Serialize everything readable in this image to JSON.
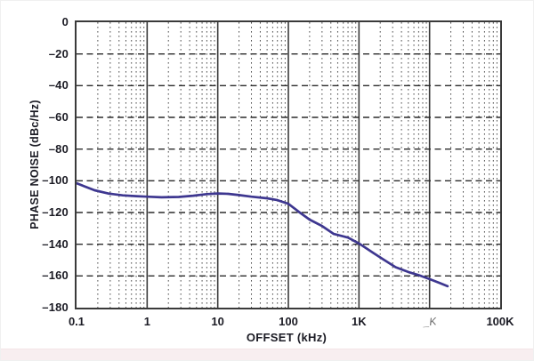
{
  "page": {
    "background": "#ffffff",
    "footer_strip_color": "#f8eef0"
  },
  "chart_data": {
    "type": "line",
    "title": "",
    "xlabel": "OFFSET (kHz)",
    "ylabel": "PHASE NOISE (dBc/Hz)",
    "x_scale": "log",
    "xlim": [
      0.1,
      100000
    ],
    "ylim": [
      -180,
      0
    ],
    "grid": {
      "minor_vertical_style": "dotted",
      "major_vertical_style": "solid",
      "horizontal_style": "dashed",
      "minor_color": "#515151",
      "major_color": "#3a3a3a",
      "horizontal_color": "#2b2b2b"
    },
    "x_ticks": [
      {
        "value": 0.1,
        "label": "0.1",
        "glitched": false
      },
      {
        "value": 1,
        "label": "1",
        "glitched": false
      },
      {
        "value": 10,
        "label": "10",
        "glitched": false
      },
      {
        "value": 100,
        "label": "100",
        "glitched": false
      },
      {
        "value": 1000,
        "label": "1K",
        "glitched": false
      },
      {
        "value": 10000,
        "label": "_K",
        "glitched": true
      },
      {
        "value": 100000,
        "label": "100K",
        "glitched": false
      }
    ],
    "y_ticks": [
      {
        "value": 0,
        "label": "0"
      },
      {
        "value": -20,
        "label": "–20"
      },
      {
        "value": -40,
        "label": "–40"
      },
      {
        "value": -60,
        "label": "–60"
      },
      {
        "value": -80,
        "label": "–80"
      },
      {
        "value": -100,
        "label": "–100"
      },
      {
        "value": -120,
        "label": "–120"
      },
      {
        "value": -140,
        "label": "–140"
      },
      {
        "value": -160,
        "label": "–160"
      },
      {
        "value": -180,
        "label": "–180"
      }
    ],
    "series": [
      {
        "name": "phase noise",
        "color": "#3e3790",
        "points": [
          [
            0.1,
            -101.5
          ],
          [
            0.13,
            -103.5
          ],
          [
            0.18,
            -106
          ],
          [
            0.28,
            -108
          ],
          [
            0.45,
            -109.2
          ],
          [
            0.7,
            -109.7
          ],
          [
            1,
            -110
          ],
          [
            1.6,
            -110.4
          ],
          [
            2.8,
            -110.2
          ],
          [
            4.5,
            -109.4
          ],
          [
            7,
            -108.4
          ],
          [
            10,
            -108
          ],
          [
            14,
            -108.2
          ],
          [
            20,
            -109
          ],
          [
            30,
            -110
          ],
          [
            50,
            -111
          ],
          [
            70,
            -112.2
          ],
          [
            100,
            -114.5
          ],
          [
            140,
            -119.5
          ],
          [
            200,
            -124.5
          ],
          [
            300,
            -128.5
          ],
          [
            440,
            -133.5
          ],
          [
            700,
            -135.8
          ],
          [
            1000,
            -139.5
          ],
          [
            1600,
            -145.5
          ],
          [
            2200,
            -149.5
          ],
          [
            3300,
            -154.5
          ],
          [
            5000,
            -157.5
          ],
          [
            7000,
            -159.5
          ],
          [
            10000,
            -162
          ],
          [
            14000,
            -164.5
          ],
          [
            18000,
            -166.5
          ]
        ]
      }
    ]
  }
}
